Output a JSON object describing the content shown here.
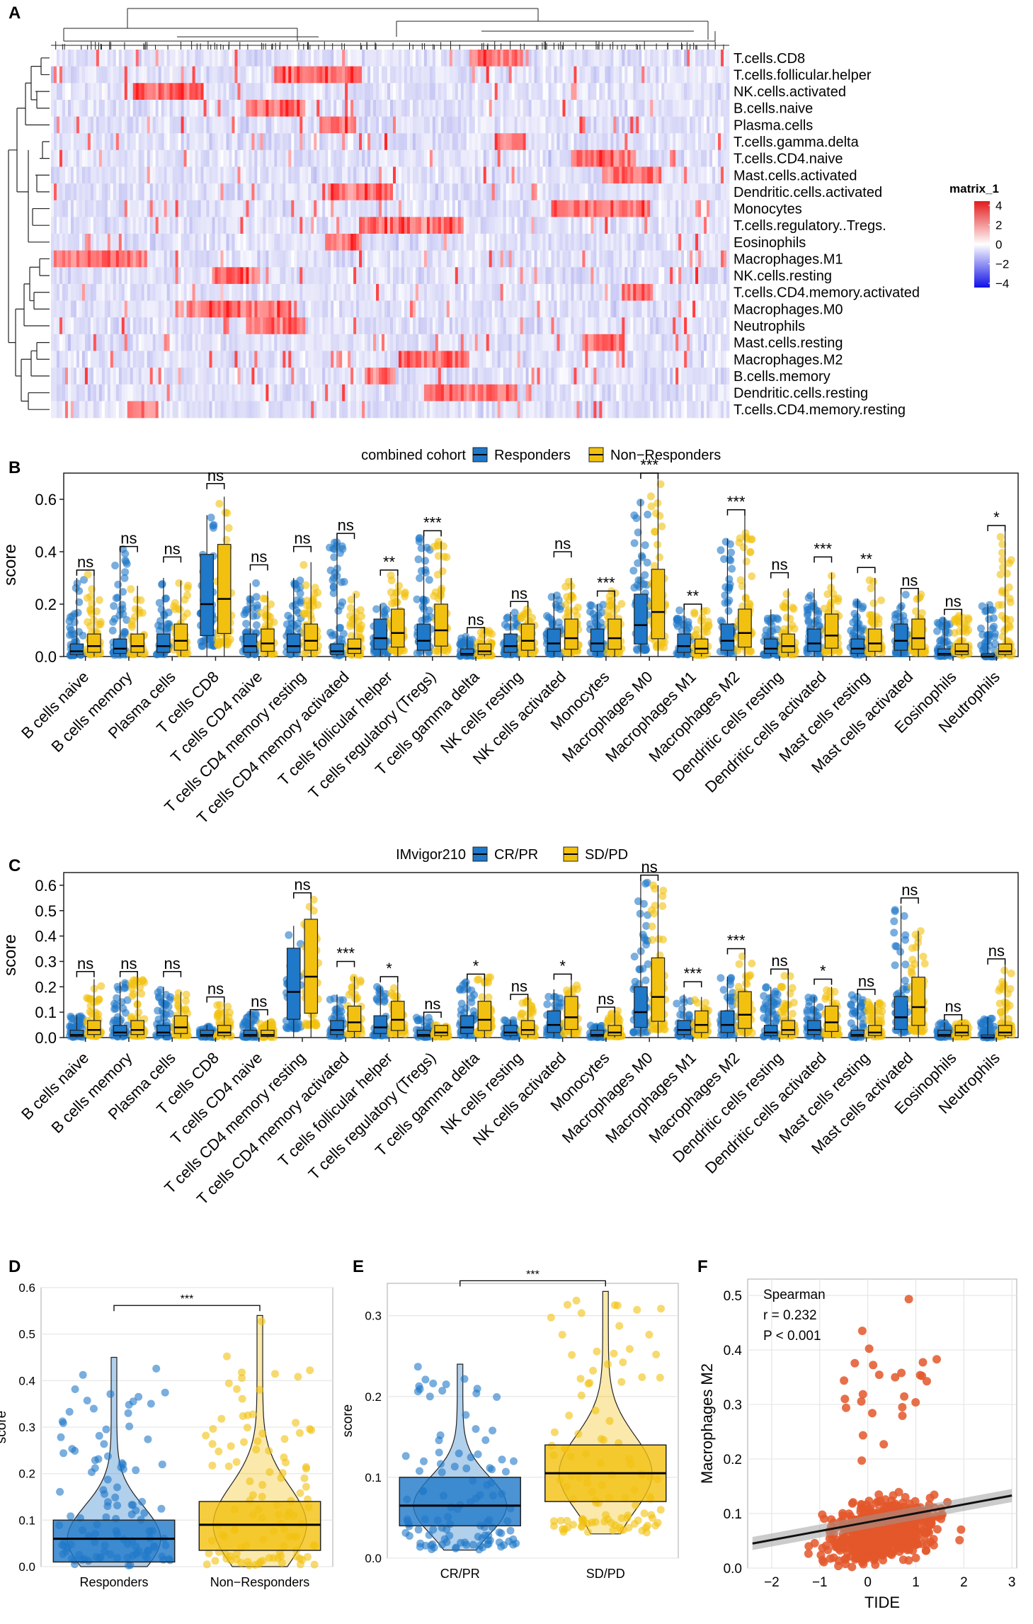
{
  "cells": [
    "B cells naive",
    "B cells memory",
    "Plasma cells",
    "T cells CD8",
    "T cells CD4 naive",
    "T cells CD4 memory resting",
    "T cells CD4 memory activated",
    "T cells follicular helper",
    "T cells regulatory (Tregs)",
    "T cells gamma delta",
    "NK cells resting",
    "NK cells activated",
    "Monocytes",
    "Macrophages M0",
    "Macrophages M1",
    "Macrophages M2",
    "Dendritic cells resting",
    "Dendritic cells activated",
    "Mast cells resting",
    "Mast cells activated",
    "Eosinophils",
    "Neutrophils"
  ],
  "panel_A": {
    "label": "A",
    "rows": [
      "T.cells.CD8",
      "T.cells.follicular.helper",
      "NK.cells.activated",
      "B.cells.naive",
      "Plasma.cells",
      "T.cells.gamma.delta",
      "T.cells.CD4.naive",
      "Mast.cells.activated",
      "Dendritic.cells.activated",
      "Monocytes",
      "T.cells.regulatory..Tregs.",
      "Eosinophils",
      "Macrophages.M1",
      "NK.cells.resting",
      "T.cells.CD4.memory.activated",
      "Macrophages.M0",
      "Neutrophils",
      "Mast.cells.resting",
      "Macrophages.M2",
      "B.cells.memory",
      "Dendritic.cells.resting",
      "T.cells.CD4.memory.resting"
    ],
    "legend_title": "matrix_1",
    "legend_ticks": [
      "4",
      "2",
      "0",
      "−2",
      "−4"
    ],
    "colors": {
      "high": "#e41a1c",
      "mid": "#ffffff",
      "low": "#2b2bd6"
    }
  },
  "chart_data": [
    {
      "panel": "B",
      "type": "box",
      "ylabel": "score",
      "ylim": [
        0,
        0.7
      ],
      "yticks": [
        "0.0",
        "0.2",
        "0.4",
        "0.6"
      ],
      "legend_title": "combined cohort",
      "groups": [
        "Responders",
        "Non−Responders"
      ],
      "colors": {
        "g1": "#1f78c8",
        "g2": "#f2c10f"
      },
      "medians_g1": [
        0.02,
        0.03,
        0.04,
        0.2,
        0.04,
        0.04,
        0.02,
        0.07,
        0.06,
        0.01,
        0.04,
        0.05,
        0.05,
        0.12,
        0.04,
        0.06,
        0.03,
        0.05,
        0.03,
        0.06,
        0.01,
        0.0
      ],
      "medians_g2": [
        0.04,
        0.04,
        0.06,
        0.22,
        0.05,
        0.06,
        0.03,
        0.09,
        0.1,
        0.02,
        0.06,
        0.07,
        0.07,
        0.17,
        0.03,
        0.09,
        0.04,
        0.08,
        0.05,
        0.07,
        0.02,
        0.02
      ],
      "max_g1": [
        0.3,
        0.42,
        0.3,
        0.54,
        0.28,
        0.3,
        0.45,
        0.2,
        0.47,
        0.08,
        0.17,
        0.24,
        0.2,
        0.6,
        0.19,
        0.45,
        0.18,
        0.26,
        0.22,
        0.24,
        0.15,
        0.2
      ],
      "max_g2": [
        0.32,
        0.27,
        0.29,
        0.61,
        0.25,
        0.36,
        0.24,
        0.31,
        0.44,
        0.1,
        0.19,
        0.3,
        0.25,
        0.69,
        0.18,
        0.54,
        0.26,
        0.32,
        0.3,
        0.24,
        0.17,
        0.48
      ],
      "brackets": [
        0.33,
        0.42,
        0.38,
        0.66,
        0.35,
        0.42,
        0.47,
        0.33,
        0.48,
        0.11,
        0.21,
        0.4,
        0.25,
        0.7,
        0.2,
        0.56,
        0.32,
        0.38,
        0.34,
        0.26,
        0.18,
        0.5
      ],
      "significance": [
        "ns",
        "ns",
        "ns",
        "ns",
        "ns",
        "ns",
        "ns",
        "**",
        "***",
        "ns",
        "ns",
        "ns",
        "***",
        "***",
        "**",
        "***",
        "ns",
        "***",
        "**",
        "ns",
        "ns",
        "*"
      ]
    },
    {
      "panel": "C",
      "type": "box",
      "ylabel": "score",
      "ylim": [
        0,
        0.65
      ],
      "yticks": [
        "0.0",
        "0.1",
        "0.2",
        "0.3",
        "0.4",
        "0.5",
        "0.6"
      ],
      "legend_title": "IMvigor210",
      "groups": [
        "CR/PR",
        "SD/PD"
      ],
      "colors": {
        "g1": "#1f78c8",
        "g2": "#f2c10f"
      },
      "medians_g1": [
        0.01,
        0.02,
        0.02,
        0.01,
        0.01,
        0.18,
        0.03,
        0.04,
        0.01,
        0.04,
        0.02,
        0.05,
        0.01,
        0.1,
        0.03,
        0.05,
        0.02,
        0.03,
        0.01,
        0.08,
        0.01,
        0.0
      ],
      "medians_g2": [
        0.03,
        0.03,
        0.04,
        0.02,
        0.01,
        0.24,
        0.06,
        0.07,
        0.02,
        0.07,
        0.03,
        0.08,
        0.02,
        0.16,
        0.05,
        0.09,
        0.03,
        0.06,
        0.02,
        0.12,
        0.02,
        0.02
      ],
      "max_g1": [
        0.09,
        0.22,
        0.2,
        0.05,
        0.1,
        0.44,
        0.17,
        0.2,
        0.08,
        0.22,
        0.07,
        0.19,
        0.05,
        0.62,
        0.17,
        0.24,
        0.2,
        0.16,
        0.17,
        0.52,
        0.06,
        0.08
      ],
      "max_g2": [
        0.23,
        0.24,
        0.18,
        0.14,
        0.07,
        0.55,
        0.24,
        0.22,
        0.05,
        0.24,
        0.15,
        0.23,
        0.11,
        0.6,
        0.16,
        0.33,
        0.25,
        0.2,
        0.14,
        0.42,
        0.06,
        0.29
      ],
      "brackets": [
        0.26,
        0.26,
        0.26,
        0.16,
        0.11,
        0.57,
        0.3,
        0.24,
        0.1,
        0.25,
        0.17,
        0.25,
        0.12,
        0.64,
        0.22,
        0.35,
        0.27,
        0.23,
        0.19,
        0.55,
        0.09,
        0.31
      ],
      "significance": [
        "ns",
        "ns",
        "ns",
        "ns",
        "ns",
        "ns",
        "***",
        "*",
        "ns",
        "*",
        "ns",
        "*",
        "ns",
        "ns",
        "***",
        "***",
        "ns",
        "*",
        "ns",
        "ns",
        "ns",
        "ns"
      ]
    },
    {
      "panel": "D",
      "type": "violin+box",
      "categories": [
        "Responders",
        "Non−Responders"
      ],
      "ylabel": "score",
      "ylim": [
        0,
        0.6
      ],
      "yticks": [
        "0.0",
        "0.1",
        "0.2",
        "0.3",
        "0.4",
        "0.5",
        "0.6"
      ],
      "q1": [
        0.01,
        0.035
      ],
      "median": [
        0.06,
        0.09
      ],
      "q3": [
        0.1,
        0.14
      ],
      "whisker_low": [
        0.0,
        0.0
      ],
      "whisker_high": [
        0.45,
        0.54
      ],
      "significance": "***"
    },
    {
      "panel": "E",
      "type": "violin+box",
      "categories": [
        "CR/PR",
        "SD/PD"
      ],
      "ylabel": "score",
      "ylim": [
        0,
        0.34
      ],
      "yticks": [
        "0.0",
        "0.1",
        "0.2",
        "0.3"
      ],
      "q1": [
        0.04,
        0.07
      ],
      "median": [
        0.065,
        0.105
      ],
      "q3": [
        0.1,
        0.14
      ],
      "whisker_low": [
        0.01,
        0.03
      ],
      "whisker_high": [
        0.24,
        0.33
      ],
      "significance": "***"
    },
    {
      "panel": "F",
      "type": "scatter",
      "xlabel": "TIDE",
      "ylabel": "Macrophages M2",
      "xlim": [
        -2.5,
        3.1
      ],
      "ylim": [
        0,
        0.53
      ],
      "xticks": [
        "−2",
        "−1",
        "0",
        "1",
        "2",
        "3"
      ],
      "yticks": [
        "0.0",
        "0.1",
        "0.2",
        "0.3",
        "0.4",
        "0.5"
      ],
      "fit": {
        "x0": -2.4,
        "y0": 0.045,
        "x1": 3.0,
        "y1": 0.133
      },
      "annotation": {
        "method": "Spearman",
        "r": "r = 0.232",
        "p": "P < 0.001"
      },
      "point_color": "#e3572a"
    }
  ]
}
